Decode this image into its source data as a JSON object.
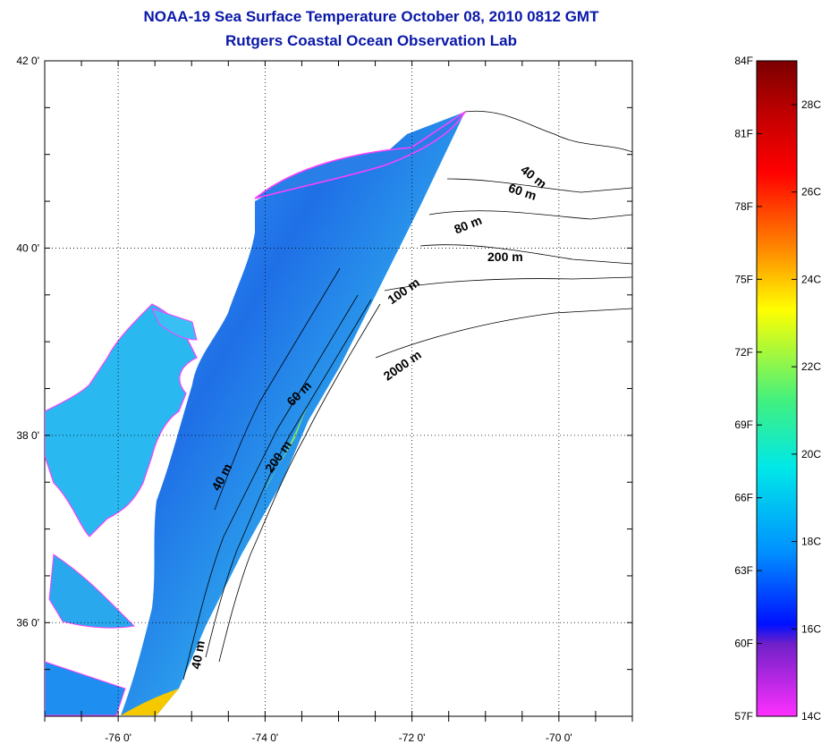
{
  "title": "NOAA-19 Sea Surface Temperature October 08, 2010 0812 GMT",
  "subtitle": "Rutgers Coastal Ocean Observation Lab",
  "map": {
    "lat_range": [
      35,
      42
    ],
    "lon_range": [
      -77,
      -69
    ],
    "lat_ticks": [
      {
        "value": 42,
        "label": "42 0'"
      },
      {
        "value": 40,
        "label": "40 0'"
      },
      {
        "value": 38,
        "label": "38 0'"
      },
      {
        "value": 36,
        "label": "36 0'"
      }
    ],
    "lon_ticks": [
      {
        "value": -76,
        "label": "-76 0'"
      },
      {
        "value": -74,
        "label": "-74 0'"
      },
      {
        "value": -72,
        "label": "-72 0'"
      },
      {
        "value": -70,
        "label": "-70 0'"
      }
    ],
    "grid": "dotted",
    "contour_labels": [
      "40 m",
      "60 m",
      "80 m",
      "200 m",
      "100 m",
      "2000 m",
      "60 m",
      "200 m",
      "40 m",
      "40 m"
    ]
  },
  "colorbar": {
    "fahrenheit": [
      "84F",
      "81F",
      "78F",
      "75F",
      "72F",
      "69F",
      "66F",
      "63F",
      "60F",
      "57F"
    ],
    "celsius": [
      "28C",
      "26C",
      "24C",
      "22C",
      "20C",
      "18C",
      "16C",
      "14C"
    ],
    "colors": [
      "#7a0000",
      "#ff0000",
      "#ff8000",
      "#ffff00",
      "#00ff80",
      "#00e0ff",
      "#0060ff",
      "#0000ff",
      "#8020c0",
      "#ff40ff"
    ]
  }
}
